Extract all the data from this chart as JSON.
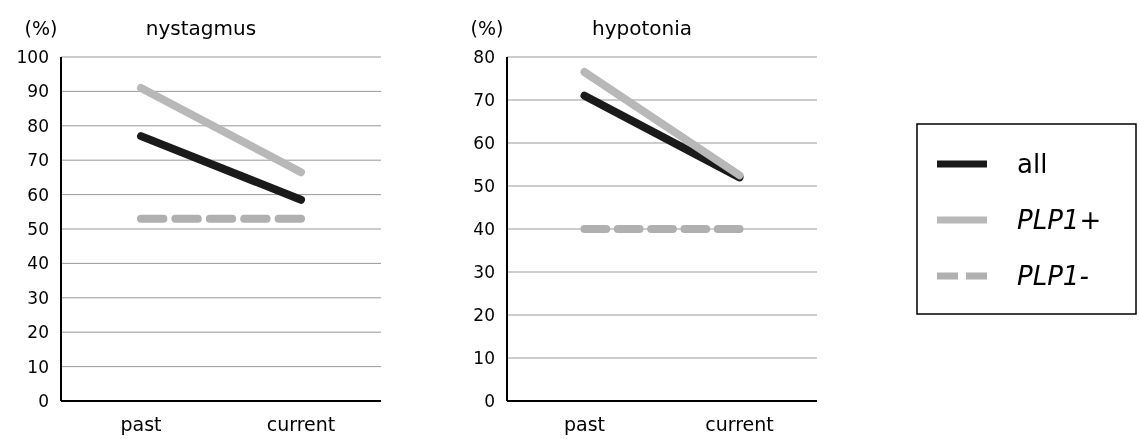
{
  "chart_data": [
    {
      "type": "line",
      "title": "nystagmus",
      "ylabel": "(%)",
      "categories": [
        "past",
        "current"
      ],
      "ylim": [
        0,
        100
      ],
      "yticks": [
        0,
        10,
        20,
        30,
        40,
        50,
        60,
        70,
        80,
        90,
        100
      ],
      "grid": "y",
      "series": [
        {
          "color": "#1a1a1a",
          "values": [
            77,
            58.5
          ]
        },
        {
          "color": "#b8b8b8",
          "values": [
            91,
            66.5
          ]
        },
        {
          "color": "#b0b0b0",
          "values": [
            53,
            53
          ],
          "line_style": "dashed"
        }
      ]
    },
    {
      "type": "line",
      "title": "hypotonia",
      "ylabel": "(%)",
      "categories": [
        "past",
        "current"
      ],
      "ylim": [
        0,
        80
      ],
      "yticks": [
        0,
        10,
        20,
        30,
        40,
        50,
        60,
        70,
        80
      ],
      "grid": "y",
      "legend": "right",
      "series": [
        {
          "name": "all",
          "color": "#1a1a1a",
          "values": [
            71,
            52
          ]
        },
        {
          "name": "PLP1+",
          "color": "#b8b8b8",
          "values": [
            76.5,
            52.5
          ]
        },
        {
          "name": "PLP1-",
          "color": "#b0b0b0",
          "values": [
            40,
            40
          ],
          "line_style": "dashed"
        }
      ]
    }
  ]
}
